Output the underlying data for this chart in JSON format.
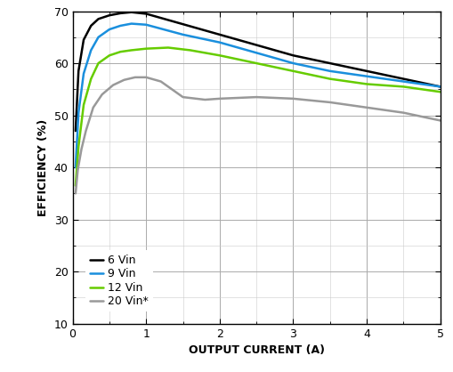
{
  "title": "",
  "xlabel": "OUTPUT CURRENT (A)",
  "ylabel": "EFFICIENCY (%)",
  "xlim": [
    0,
    5
  ],
  "ylim": [
    10,
    70
  ],
  "yticks": [
    10,
    20,
    30,
    40,
    50,
    60,
    70
  ],
  "xticks": [
    0,
    1,
    2,
    3,
    4,
    5
  ],
  "series": [
    {
      "label": "6 Vin",
      "color": "#000000",
      "x": [
        0.04,
        0.08,
        0.15,
        0.25,
        0.35,
        0.5,
        0.65,
        0.8,
        1.0,
        1.5,
        2.0,
        2.5,
        3.0,
        3.5,
        4.0,
        4.5,
        5.0
      ],
      "y": [
        47.0,
        58.5,
        64.5,
        67.2,
        68.5,
        69.2,
        69.6,
        69.8,
        69.5,
        67.5,
        65.5,
        63.5,
        61.5,
        60.0,
        58.5,
        57.0,
        55.5
      ]
    },
    {
      "label": "9 Vin",
      "color": "#1a8fdd",
      "x": [
        0.04,
        0.08,
        0.15,
        0.25,
        0.35,
        0.5,
        0.65,
        0.8,
        1.0,
        1.5,
        2.0,
        2.5,
        3.0,
        3.5,
        4.0,
        4.5,
        5.0
      ],
      "y": [
        40.0,
        50.5,
        58.0,
        62.5,
        65.0,
        66.5,
        67.2,
        67.6,
        67.4,
        65.5,
        64.0,
        62.0,
        60.0,
        58.5,
        57.5,
        56.5,
        55.5
      ]
    },
    {
      "label": "12 Vin",
      "color": "#66cc00",
      "x": [
        0.04,
        0.08,
        0.15,
        0.25,
        0.35,
        0.5,
        0.65,
        0.8,
        1.0,
        1.3,
        1.6,
        2.0,
        2.5,
        3.0,
        3.5,
        4.0,
        4.5,
        5.0
      ],
      "y": [
        36.5,
        44.0,
        52.0,
        57.0,
        60.0,
        61.5,
        62.2,
        62.5,
        62.8,
        63.0,
        62.5,
        61.5,
        60.0,
        58.5,
        57.0,
        56.0,
        55.5,
        54.5
      ]
    },
    {
      "label": "20 Vin*",
      "color": "#999999",
      "x": [
        0.04,
        0.07,
        0.12,
        0.18,
        0.28,
        0.4,
        0.55,
        0.7,
        0.85,
        1.0,
        1.2,
        1.5,
        1.8,
        2.0,
        2.5,
        3.0,
        3.5,
        4.0,
        4.5,
        5.0
      ],
      "y": [
        35.0,
        39.5,
        43.5,
        47.0,
        51.5,
        54.0,
        55.8,
        56.8,
        57.3,
        57.3,
        56.5,
        53.5,
        53.0,
        53.2,
        53.5,
        53.2,
        52.5,
        51.5,
        50.5,
        49.0
      ]
    }
  ],
  "background_color": "#ffffff",
  "grid_color": "#aaaaaa",
  "linewidth": 1.8
}
